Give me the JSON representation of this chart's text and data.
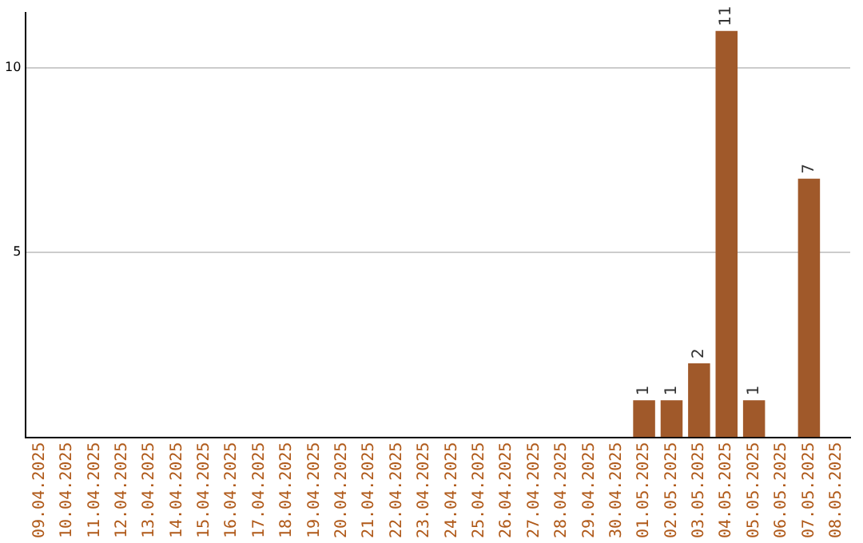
{
  "chart_data": {
    "type": "bar",
    "categories": [
      "09.04.2025",
      "10.04.2025",
      "11.04.2025",
      "12.04.2025",
      "13.04.2025",
      "14.04.2025",
      "15.04.2025",
      "16.04.2025",
      "17.04.2025",
      "18.04.2025",
      "19.04.2025",
      "20.04.2025",
      "21.04.2025",
      "22.04.2025",
      "23.04.2025",
      "24.04.2025",
      "25.04.2025",
      "26.04.2025",
      "27.04.2025",
      "28.04.2025",
      "29.04.2025",
      "30.04.2025",
      "01.05.2025",
      "02.05.2025",
      "03.05.2025",
      "04.05.2025",
      "05.05.2025",
      "06.05.2025",
      "07.05.2025",
      "08.05.2025"
    ],
    "values": [
      0,
      0,
      0,
      0,
      0,
      0,
      0,
      0,
      0,
      0,
      0,
      0,
      0,
      0,
      0,
      0,
      0,
      0,
      0,
      0,
      0,
      0,
      1,
      1,
      2,
      11,
      1,
      0,
      7,
      0
    ],
    "value_labels": [
      null,
      null,
      null,
      null,
      null,
      null,
      null,
      null,
      null,
      null,
      null,
      null,
      null,
      null,
      null,
      null,
      null,
      null,
      null,
      null,
      null,
      null,
      "1",
      "1",
      "2",
      "11",
      "1",
      null,
      "7",
      null
    ],
    "color": "#a0592a",
    "ylim": [
      0,
      11.5
    ],
    "yticks": [
      5,
      10
    ],
    "grid": "y",
    "legend": false
  }
}
